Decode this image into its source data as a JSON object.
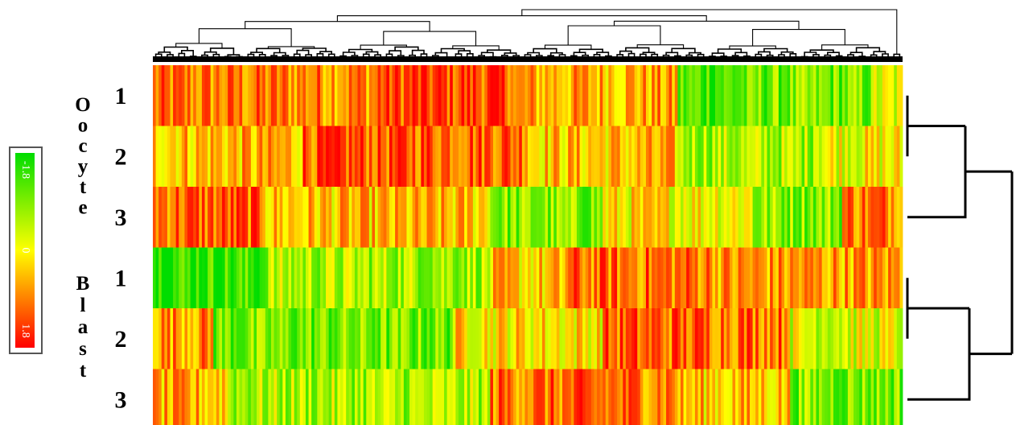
{
  "chart_data": {
    "type": "heatmap",
    "title": "",
    "xlabel": "",
    "ylabel": "",
    "groups": [
      {
        "label": "Oocyte",
        "letters": [
          "O",
          "o",
          "c",
          "y",
          "t",
          "e"
        ],
        "replicates": [
          "1",
          "2",
          "3"
        ]
      },
      {
        "label": "Blast",
        "letters": [
          "B",
          "l",
          "a",
          "s",
          "t"
        ],
        "replicates": [
          "1",
          "2",
          "3"
        ]
      }
    ],
    "colorbar": {
      "ticks": [
        "-1.8",
        "0",
        "1.8"
      ],
      "min": -1.8,
      "max": 1.8,
      "colors": [
        "#00dd00",
        "#ffff00",
        "#ff0000"
      ]
    },
    "column_count": 260,
    "row_profiles": [
      {
        "name": "Oocyte 1",
        "segments": [
          [
            0,
            0.3,
            0.9
          ],
          [
            0.3,
            0.48,
            1.3
          ],
          [
            0.48,
            0.7,
            0.6
          ],
          [
            0.7,
            0.8,
            -1.2
          ],
          [
            0.8,
            0.96,
            -1.0
          ],
          [
            0.96,
            1.0,
            -0.3
          ]
        ]
      },
      {
        "name": "Oocyte 2",
        "segments": [
          [
            0,
            0.2,
            0.5
          ],
          [
            0.2,
            0.5,
            1.2
          ],
          [
            0.5,
            0.7,
            0.4
          ],
          [
            0.7,
            0.88,
            -0.6
          ],
          [
            0.88,
            1.0,
            0.0
          ]
        ]
      },
      {
        "name": "Oocyte 3",
        "segments": [
          [
            0,
            0.15,
            1.1
          ],
          [
            0.15,
            0.45,
            0.4
          ],
          [
            0.45,
            0.6,
            -0.9
          ],
          [
            0.6,
            0.8,
            0.1
          ],
          [
            0.8,
            0.92,
            -0.8
          ],
          [
            0.92,
            1.0,
            1.0
          ]
        ]
      },
      {
        "name": "Blast 1",
        "segments": [
          [
            0,
            0.15,
            -1.4
          ],
          [
            0.15,
            0.45,
            -0.6
          ],
          [
            0.45,
            0.55,
            0.3
          ],
          [
            0.55,
            0.75,
            1.0
          ],
          [
            0.75,
            1.0,
            0.7
          ]
        ]
      },
      {
        "name": "Blast 2",
        "segments": [
          [
            0,
            0.08,
            0.8
          ],
          [
            0.08,
            0.4,
            -1.0
          ],
          [
            0.4,
            0.6,
            0.2
          ],
          [
            0.6,
            0.85,
            1.1
          ],
          [
            0.85,
            1.0,
            -0.2
          ]
        ]
      },
      {
        "name": "Blast 3",
        "segments": [
          [
            0,
            0.1,
            0.5
          ],
          [
            0.1,
            0.45,
            -0.6
          ],
          [
            0.45,
            0.7,
            1.0
          ],
          [
            0.7,
            0.85,
            0.4
          ],
          [
            0.85,
            1.0,
            -0.9
          ]
        ]
      }
    ]
  }
}
